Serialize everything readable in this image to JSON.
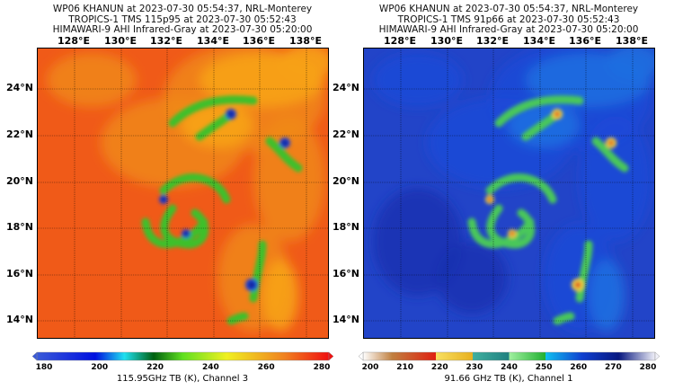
{
  "panels": [
    {
      "title_lines": [
        "WP06 KHANUN at 2023-07-30 05:54:37, NRL-Monterey",
        "TROPICS-1 TMS 115p95 at 2023-07-30 05:52:43",
        "HIMAWARI-9 AHI Infrared-Gray at 2023-07-30 05:20:00"
      ],
      "colorbar": {
        "label": "115.95GHz TB (K), Channel 3",
        "ticks": [
          "180",
          "200",
          "220",
          "240",
          "260",
          "280"
        ],
        "range": [
          180,
          280
        ],
        "colormap": "rainbow"
      }
    },
    {
      "title_lines": [
        "WP06 KHANUN at 2023-07-30 05:54:37, NRL-Monterey",
        "TROPICS-1 TMS 91p66 at 2023-07-30 05:52:43",
        "HIMAWARI-9 AHI Infrared-Gray at 2023-07-30 05:20:00"
      ],
      "colorbar": {
        "label": "91.66 GHz TB (K), Channel 1",
        "ticks": [
          "200",
          "210",
          "220",
          "230",
          "240",
          "250",
          "260",
          "270",
          "280"
        ],
        "range": [
          200,
          280
        ],
        "colormap": "discrete-89"
      }
    }
  ],
  "lon_labels": [
    "128°E",
    "130°E",
    "132°E",
    "134°E",
    "136°E",
    "138°E"
  ],
  "lat_labels": [
    "24°N",
    "22°N",
    "20°N",
    "18°N",
    "16°N",
    "14°N"
  ],
  "colors": {
    "warm": "#f05a18",
    "cold_p1": "#1b3fd8",
    "warm_p2": "#1f3fc8",
    "cold_p2": "#d8201a"
  }
}
